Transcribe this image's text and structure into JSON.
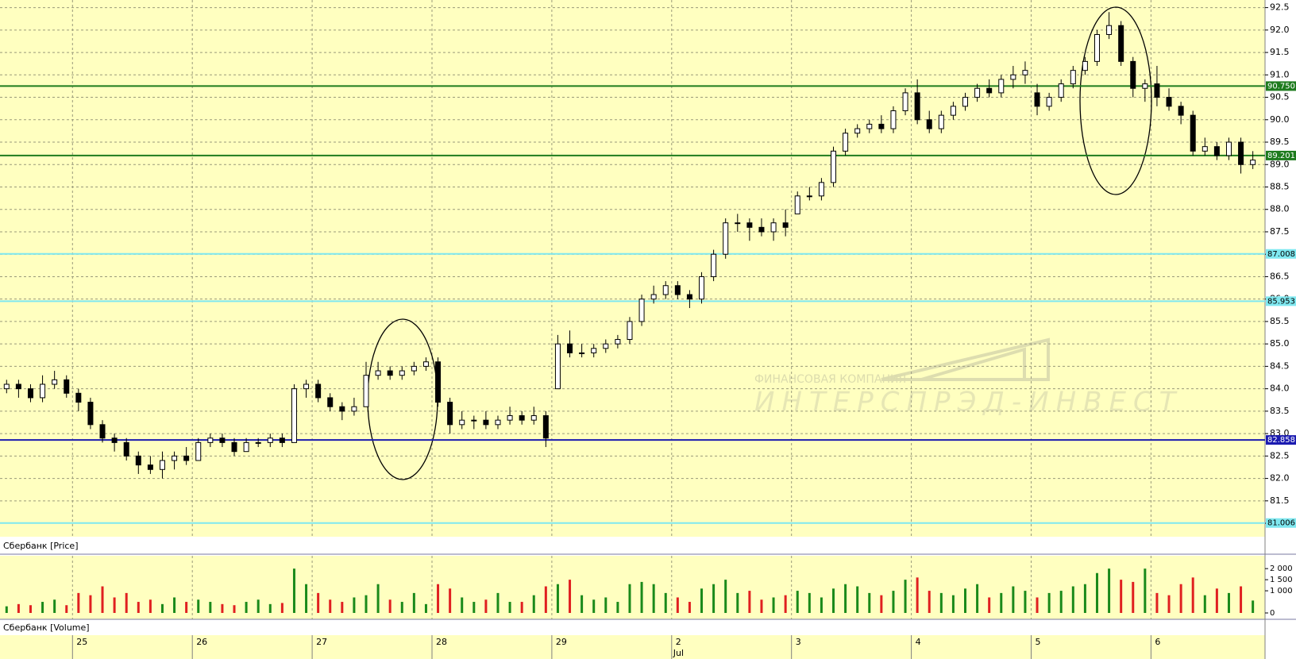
{
  "chart_data": [
    {
      "type": "candlestick",
      "title": "Сбербанк [Price]",
      "open": [
        84.0,
        84.1,
        84.0,
        83.8,
        84.1,
        84.2,
        83.9,
        83.7,
        83.2,
        82.9,
        82.8,
        82.5,
        82.3,
        82.2,
        82.4,
        82.5,
        82.4,
        82.8,
        82.9,
        82.8,
        82.6,
        82.8,
        82.8,
        82.9,
        82.8,
        84.0,
        84.1,
        83.8,
        83.6,
        83.5,
        83.6,
        84.3,
        84.4,
        84.3,
        84.4,
        84.5,
        84.6,
        83.7,
        83.2,
        83.3,
        83.3,
        83.2,
        83.3,
        83.4,
        83.3,
        83.4,
        84.0,
        85.0,
        84.8,
        84.8,
        84.9,
        85.0,
        85.1,
        85.5,
        86.0,
        86.1,
        86.3,
        86.1,
        86.0,
        86.5,
        87.0,
        87.7,
        87.7,
        87.6,
        87.5,
        87.7,
        87.9,
        88.3,
        88.3,
        88.6,
        89.3,
        89.7,
        89.8,
        89.9,
        89.8,
        90.2,
        90.6,
        90.0,
        89.8,
        90.1,
        90.3,
        90.5,
        90.7,
        90.6,
        90.9,
        91.0,
        90.6,
        90.3,
        90.5,
        90.8,
        91.1,
        91.3,
        91.9,
        92.1,
        91.3,
        90.7,
        90.8,
        90.5,
        90.3,
        90.1,
        89.3,
        89.4,
        89.2,
        89.5,
        89.0
      ],
      "high": [
        84.2,
        84.2,
        84.1,
        84.3,
        84.4,
        84.3,
        84.0,
        83.8,
        83.3,
        83.0,
        82.9,
        82.6,
        82.5,
        82.6,
        82.6,
        82.7,
        82.9,
        83.0,
        83.0,
        82.9,
        82.9,
        82.9,
        83.0,
        83.0,
        84.1,
        84.2,
        84.2,
        83.9,
        83.7,
        83.8,
        84.6,
        84.6,
        84.5,
        84.5,
        84.6,
        84.7,
        84.7,
        83.8,
        83.5,
        83.4,
        83.5,
        83.4,
        83.6,
        83.5,
        83.6,
        83.5,
        85.2,
        85.3,
        85.0,
        85.0,
        85.1,
        85.2,
        85.6,
        86.1,
        86.3,
        86.4,
        86.4,
        86.2,
        86.6,
        87.1,
        87.8,
        87.9,
        87.8,
        87.8,
        87.8,
        88.0,
        88.4,
        88.5,
        88.7,
        89.4,
        89.8,
        89.9,
        90.0,
        90.1,
        90.3,
        90.7,
        90.9,
        90.2,
        90.2,
        90.4,
        90.6,
        90.8,
        90.9,
        91.0,
        91.2,
        91.3,
        90.8,
        90.6,
        90.9,
        91.2,
        91.4,
        92.0,
        92.4,
        92.2,
        91.4,
        90.9,
        91.2,
        90.7,
        90.4,
        90.2,
        89.6,
        89.5,
        89.6,
        89.6,
        89.3
      ],
      "low": [
        83.9,
        83.8,
        83.7,
        83.7,
        84.0,
        83.8,
        83.5,
        83.1,
        82.8,
        82.6,
        82.4,
        82.1,
        82.1,
        82.0,
        82.2,
        82.3,
        82.4,
        82.7,
        82.7,
        82.5,
        82.6,
        82.7,
        82.7,
        82.7,
        82.8,
        83.8,
        83.7,
        83.5,
        83.3,
        83.4,
        83.6,
        84.2,
        84.2,
        84.2,
        84.3,
        84.4,
        83.6,
        83.0,
        83.1,
        83.1,
        83.1,
        83.1,
        83.2,
        83.2,
        83.2,
        82.7,
        84.0,
        84.7,
        84.7,
        84.7,
        84.8,
        84.9,
        85.0,
        85.4,
        85.9,
        86.0,
        86.0,
        85.8,
        85.9,
        86.4,
        86.9,
        87.5,
        87.3,
        87.4,
        87.3,
        87.4,
        87.9,
        88.2,
        88.2,
        88.5,
        89.2,
        89.6,
        89.7,
        89.7,
        89.7,
        90.1,
        89.9,
        89.7,
        89.7,
        90.0,
        90.2,
        90.4,
        90.5,
        90.5,
        90.7,
        90.8,
        90.1,
        90.2,
        90.4,
        90.7,
        91.0,
        91.2,
        91.8,
        91.2,
        90.5,
        90.4,
        90.3,
        90.2,
        89.9,
        89.2,
        89.2,
        89.1,
        89.1,
        88.8,
        88.9
      ],
      "close": [
        84.1,
        84.0,
        83.8,
        84.1,
        84.2,
        83.9,
        83.7,
        83.2,
        82.9,
        82.8,
        82.5,
        82.3,
        82.2,
        82.4,
        82.5,
        82.4,
        82.8,
        82.9,
        82.8,
        82.6,
        82.8,
        82.8,
        82.9,
        82.8,
        84.0,
        84.1,
        83.8,
        83.6,
        83.5,
        83.6,
        84.3,
        84.4,
        84.3,
        84.4,
        84.5,
        84.6,
        83.7,
        83.2,
        83.3,
        83.3,
        83.2,
        83.3,
        83.4,
        83.3,
        83.4,
        82.9,
        85.0,
        84.8,
        84.8,
        84.9,
        85.0,
        85.1,
        85.5,
        86.0,
        86.1,
        86.3,
        86.1,
        86.0,
        86.5,
        87.0,
        87.7,
        87.7,
        87.6,
        87.5,
        87.7,
        87.6,
        88.3,
        88.3,
        88.6,
        89.3,
        89.7,
        89.8,
        89.9,
        89.8,
        90.2,
        90.6,
        90.0,
        89.8,
        90.1,
        90.3,
        90.5,
        90.7,
        90.6,
        90.9,
        91.0,
        91.1,
        90.3,
        90.5,
        90.8,
        91.1,
        91.3,
        91.9,
        92.1,
        91.3,
        90.7,
        90.8,
        90.5,
        90.3,
        90.1,
        89.3,
        89.4,
        89.2,
        89.5,
        89.0,
        89.1
      ],
      "ylim": [
        80.7,
        92.67
      ],
      "yticks": [
        {
          "value": 81,
          "label": "81.0"
        },
        81.5,
        {
          "value": 82,
          "label": "82.0"
        },
        82.5,
        {
          "value": 83,
          "label": "83.0"
        },
        83.5,
        {
          "value": 84,
          "label": "84.0"
        },
        84.5,
        {
          "value": 85,
          "label": "85.0"
        },
        85.5,
        {
          "value": 86,
          "label": "86.0"
        },
        86.5,
        {
          "value": 87,
          "label": "87.0"
        },
        87.5,
        {
          "value": 88,
          "label": "88.0"
        },
        88.5,
        {
          "value": 89,
          "label": "89.0"
        },
        89.5,
        {
          "value": 90,
          "label": "90.0"
        },
        90.5,
        {
          "value": 91,
          "label": "91.0"
        },
        91.5,
        {
          "value": 92,
          "label": "92.0"
        },
        92.5
      ],
      "grid": true,
      "up_color": "#ffffff",
      "down_color": "#000000",
      "levels": [
        {
          "value": 90.75,
          "label": "90.750",
          "color": "#1e7b1e"
        },
        {
          "value": 89.201,
          "label": "89.201",
          "color": "#1e7b1e"
        },
        {
          "value": 87.008,
          "label": "87.008",
          "color": "#7fe8f0"
        },
        {
          "value": 85.953,
          "label": "85.953",
          "color": "#7fe8f0"
        },
        {
          "value": 82.858,
          "label": "82.858",
          "color": "#1b1bb0"
        },
        {
          "value": 81.006,
          "label": "81.006",
          "color": "#7fe8f0"
        }
      ],
      "watermark": [
        "ФИНАНСОВАЯ КОМПАНИЯ",
        "ИНТЕРСПРЭД-ИНВЕСТ"
      ]
    },
    {
      "type": "volume",
      "title": "Сбербанк [Volume]",
      "categories": [
        null,
        null,
        null,
        null,
        null,
        null,
        "25",
        null,
        null,
        null,
        null,
        null,
        null,
        null,
        null,
        null,
        "26",
        null,
        null,
        null,
        null,
        null,
        null,
        null,
        null,
        null,
        "27",
        null,
        null,
        null,
        null,
        null,
        null,
        null,
        null,
        null,
        "28",
        null,
        null,
        null,
        null,
        null,
        null,
        null,
        null,
        null,
        "29",
        null,
        null,
        null,
        null,
        null,
        null,
        null,
        null,
        null,
        "2",
        null,
        null,
        null,
        null,
        null,
        null,
        null,
        null,
        null,
        "3",
        null,
        null,
        null,
        null,
        null,
        null,
        null,
        null,
        null,
        "4",
        null,
        null,
        null,
        null,
        null,
        null,
        null,
        null,
        null,
        "5",
        null,
        null,
        null,
        null,
        null,
        null,
        null,
        null,
        null,
        "6",
        null,
        null,
        null,
        null,
        null,
        null,
        null,
        null
      ],
      "x_secondary_categories": [
        null,
        null,
        null,
        null,
        null,
        null,
        null,
        null,
        null,
        null,
        null,
        null,
        null,
        null,
        null,
        null,
        null,
        null,
        null,
        null,
        null,
        null,
        null,
        null,
        null,
        null,
        null,
        null,
        null,
        null,
        null,
        null,
        null,
        null,
        null,
        null,
        null,
        null,
        null,
        null,
        null,
        null,
        null,
        null,
        null,
        null,
        null,
        null,
        null,
        null,
        null,
        null,
        null,
        null,
        null,
        null,
        "Jul",
        null,
        null,
        null,
        null,
        null,
        null,
        null,
        null,
        null,
        null,
        null,
        null,
        null,
        null,
        null,
        null,
        null,
        null,
        null,
        null,
        null,
        null,
        null,
        null,
        null,
        null,
        null,
        null,
        null,
        null,
        null,
        null,
        null,
        null,
        null,
        null,
        null,
        null,
        null,
        null,
        null,
        null,
        null,
        null,
        null,
        null,
        null,
        null
      ],
      "values": [
        300,
        400,
        350,
        500,
        600,
        350,
        900,
        800,
        1200,
        700,
        900,
        500,
        600,
        400,
        700,
        500,
        600,
        500,
        400,
        350,
        500,
        600,
        400,
        450,
        2000,
        1300,
        900,
        600,
        500,
        700,
        800,
        1300,
        600,
        500,
        900,
        400,
        1300,
        1100,
        700,
        500,
        600,
        900,
        500,
        500,
        800,
        1200,
        1300,
        1500,
        800,
        600,
        700,
        500,
        1300,
        1400,
        1300,
        900,
        700,
        500,
        1100,
        1300,
        1500,
        900,
        1000,
        600,
        700,
        800,
        1000,
        900,
        700,
        1100,
        1300,
        1200,
        900,
        800,
        1000,
        1500,
        1600,
        1000,
        900,
        800,
        1100,
        1300,
        700,
        900,
        1200,
        1000,
        700,
        900,
        1000,
        1200,
        1300,
        1800,
        2000,
        1500,
        1400,
        2000,
        900,
        800,
        1300,
        1600,
        800,
        1100,
        900,
        1200,
        560
      ],
      "ylim": [
        0,
        2400
      ],
      "yticks": [
        0,
        {
          "value": 1000,
          "label": "1 000"
        },
        {
          "value": 1500,
          "label": "1 500"
        },
        {
          "value": 2000,
          "label": "2 000"
        }
      ],
      "up_color": "#1a8a1a",
      "down_color": "#e02020"
    }
  ]
}
